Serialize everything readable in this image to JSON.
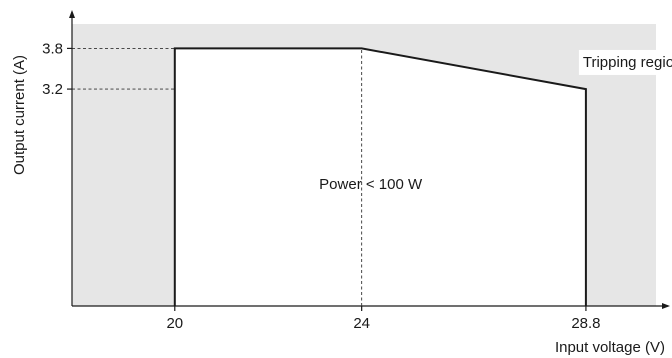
{
  "chart_data": {
    "type": "area",
    "xlabel": "Input voltage (V)",
    "ylabel": "Output current (A)",
    "x_ticks": [
      "20",
      "24",
      "28.8"
    ],
    "y_ticks": [
      "3.8",
      "3.2"
    ],
    "xlim": [
      17.8,
      30.3
    ],
    "ylim": [
      0,
      4.16
    ],
    "series": [
      {
        "x": [
          20,
          20,
          24,
          28.8,
          28.8
        ],
        "y": [
          0,
          3.8,
          3.8,
          3.2,
          0
        ]
      }
    ],
    "guides": [
      {
        "from": [
          17.8,
          3.8
        ],
        "to": [
          20,
          3.8
        ]
      },
      {
        "from": [
          17.8,
          3.2
        ],
        "to": [
          28.8,
          3.2
        ]
      },
      {
        "from": [
          24,
          0
        ],
        "to": [
          24,
          3.8
        ]
      }
    ],
    "annotations": [
      {
        "text": "Power < 100 W",
        "x": 24,
        "y": 1.8
      },
      {
        "text": "Tripping region",
        "x": 29.8,
        "y": 3.6
      }
    ],
    "grid": false,
    "colors": {
      "region_fill": "#e6e6e6",
      "operating_fill": "#ffffff",
      "line": "#1a1a1a"
    }
  }
}
